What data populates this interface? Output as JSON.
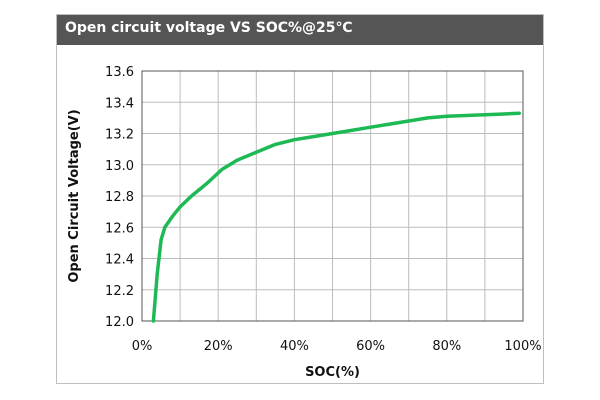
{
  "chart_data": {
    "type": "line",
    "title": "Open circuit voltage VS SOC%@25℃",
    "xlabel": "SOC(%)",
    "ylabel": "Open Circuit Voltage(V)",
    "xlim": [
      0,
      100
    ],
    "ylim": [
      12.0,
      13.6
    ],
    "xticks": [
      0,
      20,
      40,
      60,
      80,
      100
    ],
    "xtick_labels": [
      "0%",
      "20%",
      "40%",
      "60%",
      "80%",
      "100%"
    ],
    "yticks": [
      12.0,
      12.2,
      12.4,
      12.6,
      12.8,
      13.0,
      13.2,
      13.4,
      13.6
    ],
    "ytick_labels": [
      "12.0",
      "12.2",
      "12.4",
      "12.6",
      "12.8",
      "13.0",
      "13.2",
      "13.4",
      "13.6"
    ],
    "grid": true,
    "series": [
      {
        "color": "#1db954",
        "x": [
          3,
          4,
          5,
          6,
          8,
          10,
          13,
          17,
          21,
          25,
          30,
          35,
          40,
          45,
          50,
          55,
          60,
          65,
          70,
          75,
          80,
          85,
          90,
          95,
          99
        ],
        "y": [
          12.0,
          12.3,
          12.52,
          12.6,
          12.67,
          12.73,
          12.8,
          12.88,
          12.97,
          13.03,
          13.08,
          13.13,
          13.16,
          13.18,
          13.2,
          13.22,
          13.24,
          13.26,
          13.28,
          13.3,
          13.31,
          13.315,
          13.32,
          13.325,
          13.33
        ]
      }
    ]
  }
}
